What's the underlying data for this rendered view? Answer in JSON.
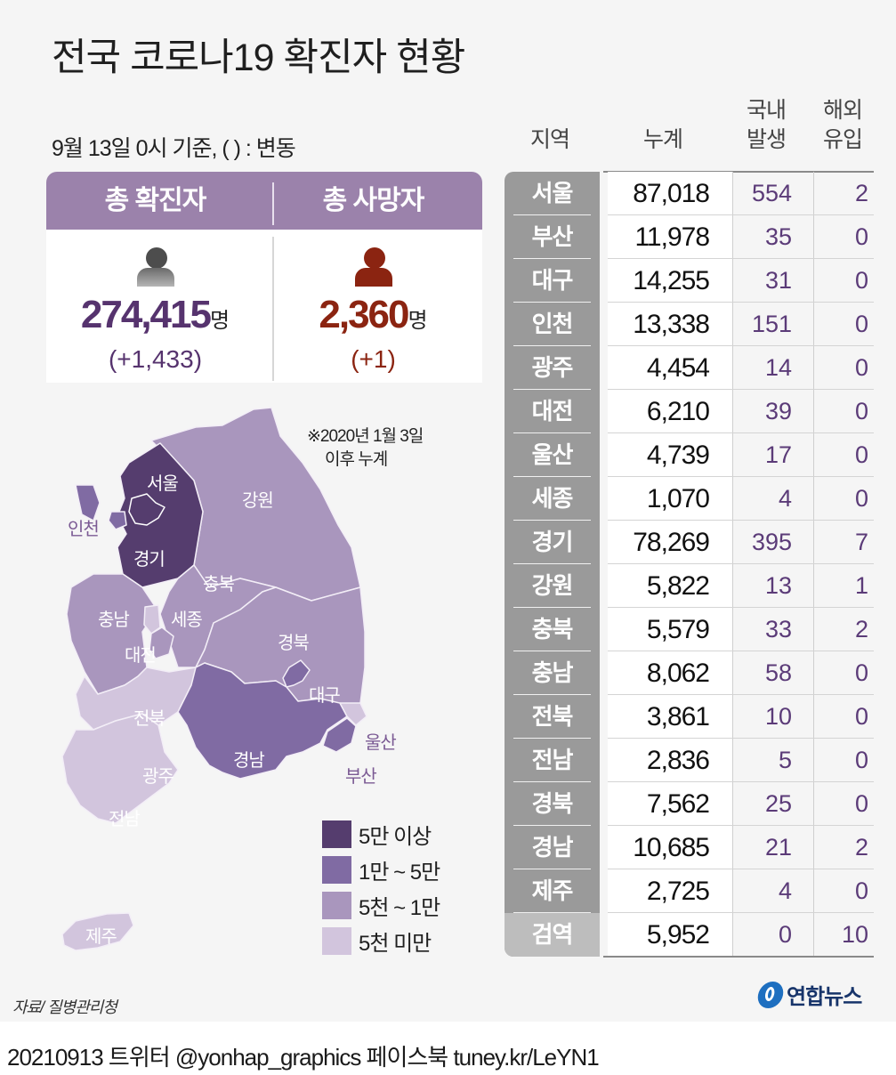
{
  "title": "전국 코로나19 확진자 현황",
  "subtitle": "9월 13일 0시 기준, ( ) : 변동",
  "summary": {
    "confirmed": {
      "label": "총 확진자",
      "value": "274,415",
      "unit": "명",
      "delta": "(+1,433)",
      "icon": "person-icon",
      "color": "#56336e"
    },
    "deaths": {
      "label": "총 사망자",
      "value": "2,360",
      "unit": "명",
      "delta": "(+1)",
      "icon": "person-icon",
      "color": "#8b2411"
    }
  },
  "table": {
    "headers": {
      "region": "지역",
      "total": "누계",
      "domestic_1": "국내",
      "domestic_2": "발생",
      "overseas_1": "해외",
      "overseas_2": "유입"
    },
    "rows": [
      {
        "region": "서울",
        "total": "87,018",
        "domestic": "554",
        "overseas": "2"
      },
      {
        "region": "부산",
        "total": "11,978",
        "domestic": "35",
        "overseas": "0"
      },
      {
        "region": "대구",
        "total": "14,255",
        "domestic": "31",
        "overseas": "0"
      },
      {
        "region": "인천",
        "total": "13,338",
        "domestic": "151",
        "overseas": "0"
      },
      {
        "region": "광주",
        "total": "4,454",
        "domestic": "14",
        "overseas": "0"
      },
      {
        "region": "대전",
        "total": "6,210",
        "domestic": "39",
        "overseas": "0"
      },
      {
        "region": "울산",
        "total": "4,739",
        "domestic": "17",
        "overseas": "0"
      },
      {
        "region": "세종",
        "total": "1,070",
        "domestic": "4",
        "overseas": "0"
      },
      {
        "region": "경기",
        "total": "78,269",
        "domestic": "395",
        "overseas": "7"
      },
      {
        "region": "강원",
        "total": "5,822",
        "domestic": "13",
        "overseas": "1"
      },
      {
        "region": "충북",
        "total": "5,579",
        "domestic": "33",
        "overseas": "2"
      },
      {
        "region": "충남",
        "total": "8,062",
        "domestic": "58",
        "overseas": "0"
      },
      {
        "region": "전북",
        "total": "3,861",
        "domestic": "10",
        "overseas": "0"
      },
      {
        "region": "전남",
        "total": "2,836",
        "domestic": "5",
        "overseas": "0"
      },
      {
        "region": "경북",
        "total": "7,562",
        "domestic": "25",
        "overseas": "0"
      },
      {
        "region": "경남",
        "total": "10,685",
        "domestic": "21",
        "overseas": "2"
      },
      {
        "region": "제주",
        "total": "2,725",
        "domestic": "4",
        "overseas": "0"
      },
      {
        "region": "검역",
        "total": "5,952",
        "domestic": "0",
        "overseas": "10"
      }
    ]
  },
  "map": {
    "note_line1": "※2020년 1월 3일",
    "note_line2": "이후 누계",
    "labels": {
      "seoul": "서울",
      "incheon": "인천",
      "gyeonggi": "경기",
      "gangwon": "강원",
      "chungbuk": "충북",
      "chungnam": "충남",
      "sejong": "세종",
      "daejeon": "대전",
      "gyeongbuk": "경북",
      "daegu": "대구",
      "jeonbuk": "전북",
      "gwangju": "광주",
      "jeonnam": "전남",
      "gyeongnam": "경남",
      "ulsan": "울산",
      "busan": "부산",
      "jeju": "제주"
    },
    "colors": {
      "tier1": "#553d6e",
      "tier2": "#806ba3",
      "tier3": "#a996bd",
      "tier4": "#d2c5dd"
    }
  },
  "legend": [
    {
      "label": "5만 이상",
      "color": "#553d6e"
    },
    {
      "label": "1만 ~ 5만",
      "color": "#806ba3"
    },
    {
      "label": "5천 ~ 1만",
      "color": "#a996bd"
    },
    {
      "label": "5천 미만",
      "color": "#d2c5dd"
    }
  ],
  "source": "자료/ 질병관리청",
  "logo_text": "연합뉴스",
  "footer": "20210913 트위터 @yonhap_graphics  페이스북 tuney.kr/LeYN1",
  "chart_data": {
    "type": "table",
    "title": "전국 코로나19 확진자 현황",
    "subtitle": "9월 13일 0시 기준",
    "summary": {
      "total_confirmed": 274415,
      "confirmed_change": 1433,
      "total_deaths": 2360,
      "deaths_change": 1
    },
    "columns": [
      "지역",
      "누계",
      "국내발생",
      "해외유입"
    ],
    "categories": [
      "서울",
      "부산",
      "대구",
      "인천",
      "광주",
      "대전",
      "울산",
      "세종",
      "경기",
      "강원",
      "충북",
      "충남",
      "전북",
      "전남",
      "경북",
      "경남",
      "제주",
      "검역"
    ],
    "series": [
      {
        "name": "누계",
        "values": [
          87018,
          11978,
          14255,
          13338,
          4454,
          6210,
          4739,
          1070,
          78269,
          5822,
          5579,
          8062,
          3861,
          2836,
          7562,
          10685,
          2725,
          5952
        ]
      },
      {
        "name": "국내발생",
        "values": [
          554,
          35,
          31,
          151,
          14,
          39,
          17,
          4,
          395,
          13,
          33,
          58,
          10,
          5,
          25,
          21,
          4,
          0
        ]
      },
      {
        "name": "해외유입",
        "values": [
          2,
          0,
          0,
          0,
          0,
          0,
          0,
          0,
          7,
          1,
          2,
          0,
          0,
          0,
          0,
          2,
          0,
          10
        ]
      }
    ],
    "map_legend": [
      "5만 이상",
      "1만 ~ 5만",
      "5천 ~ 1만",
      "5천 미만"
    ],
    "map_tiers": {
      "5만 이상": [
        "서울",
        "경기"
      ],
      "1만 ~ 5만": [
        "부산",
        "대구",
        "인천",
        "경남"
      ],
      "5천 ~ 1만": [
        "대전",
        "강원",
        "충북",
        "충남",
        "경북"
      ],
      "5천 미만": [
        "광주",
        "울산",
        "세종",
        "전북",
        "전남",
        "제주"
      ]
    }
  }
}
